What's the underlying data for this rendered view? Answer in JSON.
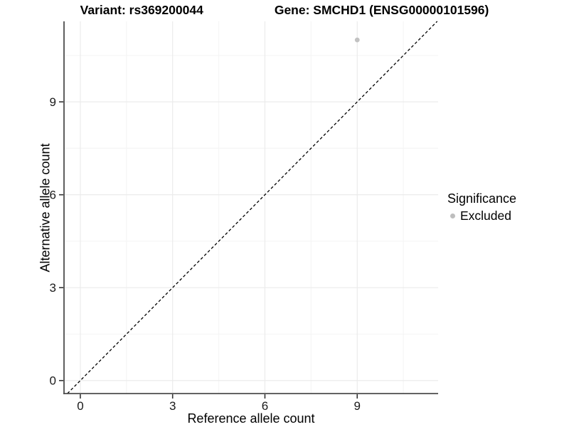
{
  "title": {
    "variant": "Variant: rs369200044",
    "gene": "Gene: SMCHD1 (ENSG00000101596)"
  },
  "legend": {
    "title": "Significance",
    "items": [
      {
        "label": "Excluded",
        "color": "#bebebe"
      }
    ],
    "position": "right"
  },
  "chart_data": {
    "type": "scatter",
    "title": "Variant: rs369200044   Gene: SMCHD1 (ENSG00000101596)",
    "xlabel": "Reference allele count",
    "ylabel": "Alternative allele count",
    "xticks": [
      0,
      3,
      6,
      9
    ],
    "yticks": [
      0,
      3,
      6,
      9
    ],
    "x_minor_ticks": [
      1.5,
      4.5,
      7.5,
      10.5
    ],
    "y_minor_ticks": [
      1.5,
      4.5,
      7.5,
      10.5
    ],
    "xlim": [
      -0.53,
      11.63
    ],
    "ylim": [
      -0.42,
      11.6
    ],
    "grid": true,
    "points": [
      {
        "x": 9,
        "y": 11,
        "series": "Excluded"
      }
    ],
    "abline": {
      "slope": 1,
      "intercept": 0,
      "linetype": "dashed",
      "color": "#000000"
    },
    "legend_entries": [
      "Excluded"
    ],
    "colors": {
      "point": "#c2c2c2",
      "grid_major": "#ebebeb",
      "grid_minor": "#f5f5f5",
      "axis": "#4d4d4d",
      "tick": "#333333",
      "text": "#1a1a1a"
    }
  }
}
